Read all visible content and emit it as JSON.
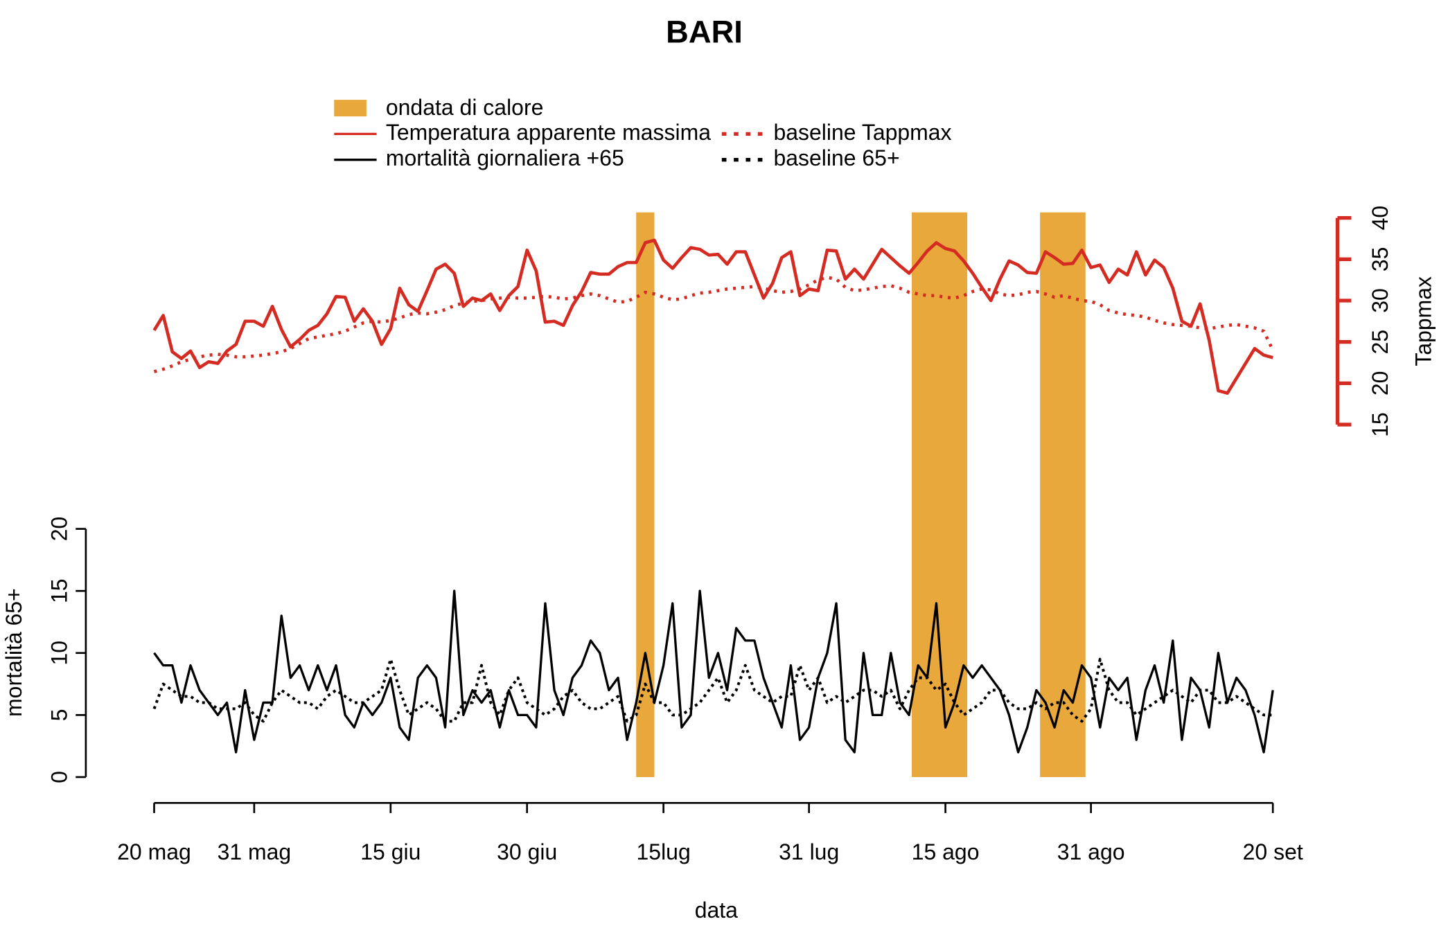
{
  "chart_data": {
    "type": "line",
    "title": "BARI",
    "xlabel": "data",
    "ylabel": "mortalità 65+",
    "y2label": "Tappmax",
    "x": [
      0,
      1,
      2,
      3,
      4,
      5,
      6,
      7,
      8,
      9,
      10,
      11,
      12,
      13,
      14,
      15,
      16,
      17,
      18,
      19,
      20,
      21,
      22,
      23,
      24,
      25,
      26,
      27,
      28,
      29,
      30,
      31,
      32,
      33,
      34,
      35,
      36,
      37,
      38,
      39,
      40,
      41,
      42,
      43,
      44,
      45,
      46,
      47,
      48,
      49,
      50,
      51,
      52,
      53,
      54,
      55,
      56,
      57,
      58,
      59,
      60,
      61,
      62,
      63,
      64,
      65,
      66,
      67,
      68,
      69,
      70,
      71,
      72,
      73,
      74,
      75,
      76,
      77,
      78,
      79,
      80,
      81,
      82,
      83,
      84,
      85,
      86,
      87,
      88,
      89,
      90,
      91,
      92,
      93,
      94,
      95,
      96,
      97,
      98,
      99,
      100,
      101,
      102,
      103,
      104,
      105,
      106,
      107,
      108,
      109,
      110,
      111,
      112,
      113,
      114,
      115,
      116,
      117,
      118,
      119,
      120,
      121,
      122,
      123
    ],
    "xlim": [
      0,
      123
    ],
    "xticks": [
      {
        "value": 0,
        "label": "20 mag"
      },
      {
        "value": 11,
        "label": "31 mag"
      },
      {
        "value": 26,
        "label": "15 giu"
      },
      {
        "value": 41,
        "label": "30 giu"
      },
      {
        "value": 56,
        "label": "15lug"
      },
      {
        "value": 72,
        "label": "31 lug"
      },
      {
        "value": 87,
        "label": "15 ago"
      },
      {
        "value": 103,
        "label": "31 ago"
      },
      {
        "value": 123,
        "label": "20 set"
      }
    ],
    "ylim": [
      0,
      20
    ],
    "yticks": [
      0,
      5,
      10,
      15,
      20
    ],
    "y2lim": [
      15,
      40
    ],
    "y2ticks": [
      15,
      20,
      25,
      30,
      35,
      40
    ],
    "y2color": "#d42b22",
    "heatwaves": {
      "name": "ondata di calore",
      "color": "#e8a83c",
      "spans": [
        [
          53,
          55
        ],
        [
          83.3,
          89.4
        ],
        [
          97.4,
          102.4
        ]
      ]
    },
    "series": [
      {
        "name": "Temperatura apparente massima",
        "color": "#d42b22",
        "axis": "y2",
        "line_style": "solid",
        "values": [
          26.4,
          28.2,
          23.8,
          23,
          23.9,
          21.9,
          22.6,
          22.4,
          23.9,
          24.7,
          27.5,
          27.5,
          26.9,
          29.3,
          26.5,
          24.4,
          25.3,
          26.4,
          27,
          28.4,
          30.5,
          30.4,
          27.5,
          29,
          27.5,
          24.7,
          26.6,
          31.5,
          29.5,
          28.7,
          31.2,
          33.8,
          34.4,
          33.3,
          29.3,
          30.3,
          30,
          30.8,
          28.8,
          30.6,
          31.7,
          36.1,
          33.6,
          27.4,
          27.5,
          27,
          29.4,
          31.1,
          33.4,
          33.2,
          33.2,
          34.1,
          34.6,
          34.6,
          37,
          37.3,
          34.9,
          33.9,
          35.2,
          36.4,
          36.2,
          35.5,
          35.6,
          34.4,
          35.9,
          35.9,
          33.1,
          30.3,
          32.1,
          35.2,
          35.9,
          30.6,
          31.4,
          31.2,
          36.1,
          36,
          32.6,
          33.8,
          32.6,
          34.4,
          36.2,
          35.2,
          34.2,
          33.3,
          34.6,
          36,
          37,
          36.3,
          36,
          34.8,
          33.3,
          31.6,
          30,
          32.6,
          34.8,
          34.3,
          33.4,
          33.3,
          35.9,
          35.2,
          34.4,
          34.5,
          36.1,
          34,
          34.3,
          32.2,
          33.8,
          33.1,
          35.9,
          33.1,
          34.9,
          34,
          31.5,
          27.5,
          26.9,
          29.6,
          25.2,
          19.1,
          18.8,
          20.6,
          22.4,
          24.2,
          23.4,
          23.1
        ]
      },
      {
        "name": "baseline Tappmax",
        "color": "#d42b22",
        "axis": "y2",
        "line_style": "dotted",
        "values": [
          21.4,
          21.7,
          22.1,
          22.6,
          22.9,
          23.2,
          23.4,
          23.5,
          23.4,
          23.2,
          23.2,
          23.3,
          23.4,
          23.6,
          23.8,
          24.2,
          24.8,
          25.4,
          25.6,
          25.8,
          26,
          26.3,
          26.8,
          27.3,
          27.5,
          27.4,
          27.6,
          27.9,
          28.3,
          28.5,
          28.4,
          28.6,
          28.9,
          29.4,
          29.7,
          29.9,
          30,
          30.2,
          30.3,
          30.4,
          30.3,
          30.3,
          30.4,
          30.5,
          30.4,
          30.2,
          30.3,
          30.6,
          30.8,
          30.6,
          30.2,
          29.8,
          29.9,
          30.4,
          31,
          30.8,
          30.4,
          30.1,
          30.2,
          30.6,
          30.9,
          31,
          31.2,
          31.4,
          31.5,
          31.6,
          31.7,
          31.5,
          31.2,
          31,
          31.1,
          31.4,
          31.9,
          32.5,
          32.8,
          32.6,
          31.6,
          31.2,
          31.3,
          31.5,
          31.7,
          31.8,
          31.5,
          31,
          30.8,
          30.6,
          30.6,
          30.4,
          30.3,
          30.6,
          31.1,
          31.4,
          31.3,
          30.8,
          30.6,
          30.7,
          31,
          31.1,
          30.8,
          30.4,
          30.6,
          30.3,
          30,
          29.9,
          29.5,
          28.8,
          28.5,
          28.3,
          28.2,
          28,
          27.6,
          27.3,
          27.1,
          27,
          26.9,
          26.7,
          26.6,
          26.8,
          27,
          27.1,
          26.9,
          26.7,
          26.3,
          24
        ]
      },
      {
        "name": "mortalità giornaliera +65",
        "color": "#000000",
        "axis": "y",
        "line_style": "solid",
        "values": [
          10,
          9,
          9,
          6,
          9,
          7,
          6,
          5,
          6,
          2,
          7,
          3,
          6,
          6,
          13,
          8,
          9,
          7,
          9,
          7,
          9,
          5,
          4,
          6,
          5,
          6,
          8,
          4,
          3,
          8,
          9,
          8,
          4,
          15,
          5,
          7,
          6,
          7,
          4,
          7,
          5,
          5,
          4,
          14,
          7,
          5,
          8,
          9,
          11,
          10,
          7,
          8,
          3,
          6,
          10,
          6,
          9,
          14,
          4,
          5,
          15,
          8,
          10,
          7,
          12,
          11,
          11,
          8,
          6,
          4,
          9,
          3,
          4,
          8,
          10,
          14,
          3,
          2,
          10,
          5,
          5,
          10,
          6,
          5,
          9,
          8,
          14,
          4,
          6,
          9,
          8,
          9,
          8,
          7,
          5,
          2,
          4,
          7,
          6,
          4,
          7,
          6,
          9,
          8,
          4,
          8,
          7,
          8,
          3,
          7,
          9,
          6,
          11,
          3,
          8,
          7,
          4,
          10,
          6,
          8,
          7,
          5,
          2,
          7
        ]
      },
      {
        "name": "baseline 65+",
        "color": "#000000",
        "axis": "y",
        "line_style": "dotted",
        "values": [
          5.5,
          7.5,
          7,
          6.5,
          6.5,
          6,
          6,
          5.5,
          5.5,
          5.5,
          6,
          5,
          4.5,
          6,
          7,
          6.5,
          6,
          6,
          5.5,
          6.5,
          7,
          6.5,
          6,
          6,
          6.5,
          7,
          9.5,
          7,
          5,
          5.5,
          6,
          5.5,
          4.5,
          4.5,
          6,
          6,
          9,
          6,
          5,
          7,
          8,
          6,
          5.5,
          5,
          5.5,
          6.5,
          7,
          6,
          5.5,
          5.5,
          6,
          6.5,
          4.5,
          5,
          7.5,
          6,
          6,
          5,
          5,
          5.5,
          6,
          7,
          8,
          6,
          7,
          9,
          7,
          6.5,
          6,
          6.5,
          6.5,
          9,
          7,
          8,
          6,
          6.5,
          6,
          6.5,
          7,
          7,
          6.5,
          7,
          5.5,
          7,
          8,
          8,
          7,
          7.5,
          6,
          5,
          5.5,
          6,
          7,
          7,
          6,
          5.5,
          5.5,
          6,
          5.5,
          6,
          6,
          5,
          4.5,
          5.5,
          9.5,
          7,
          6,
          6,
          5,
          5.5,
          6,
          6.5,
          7,
          6.5,
          6,
          7,
          7,
          6,
          6,
          6.5,
          6,
          5.5,
          5,
          5
        ]
      }
    ]
  }
}
